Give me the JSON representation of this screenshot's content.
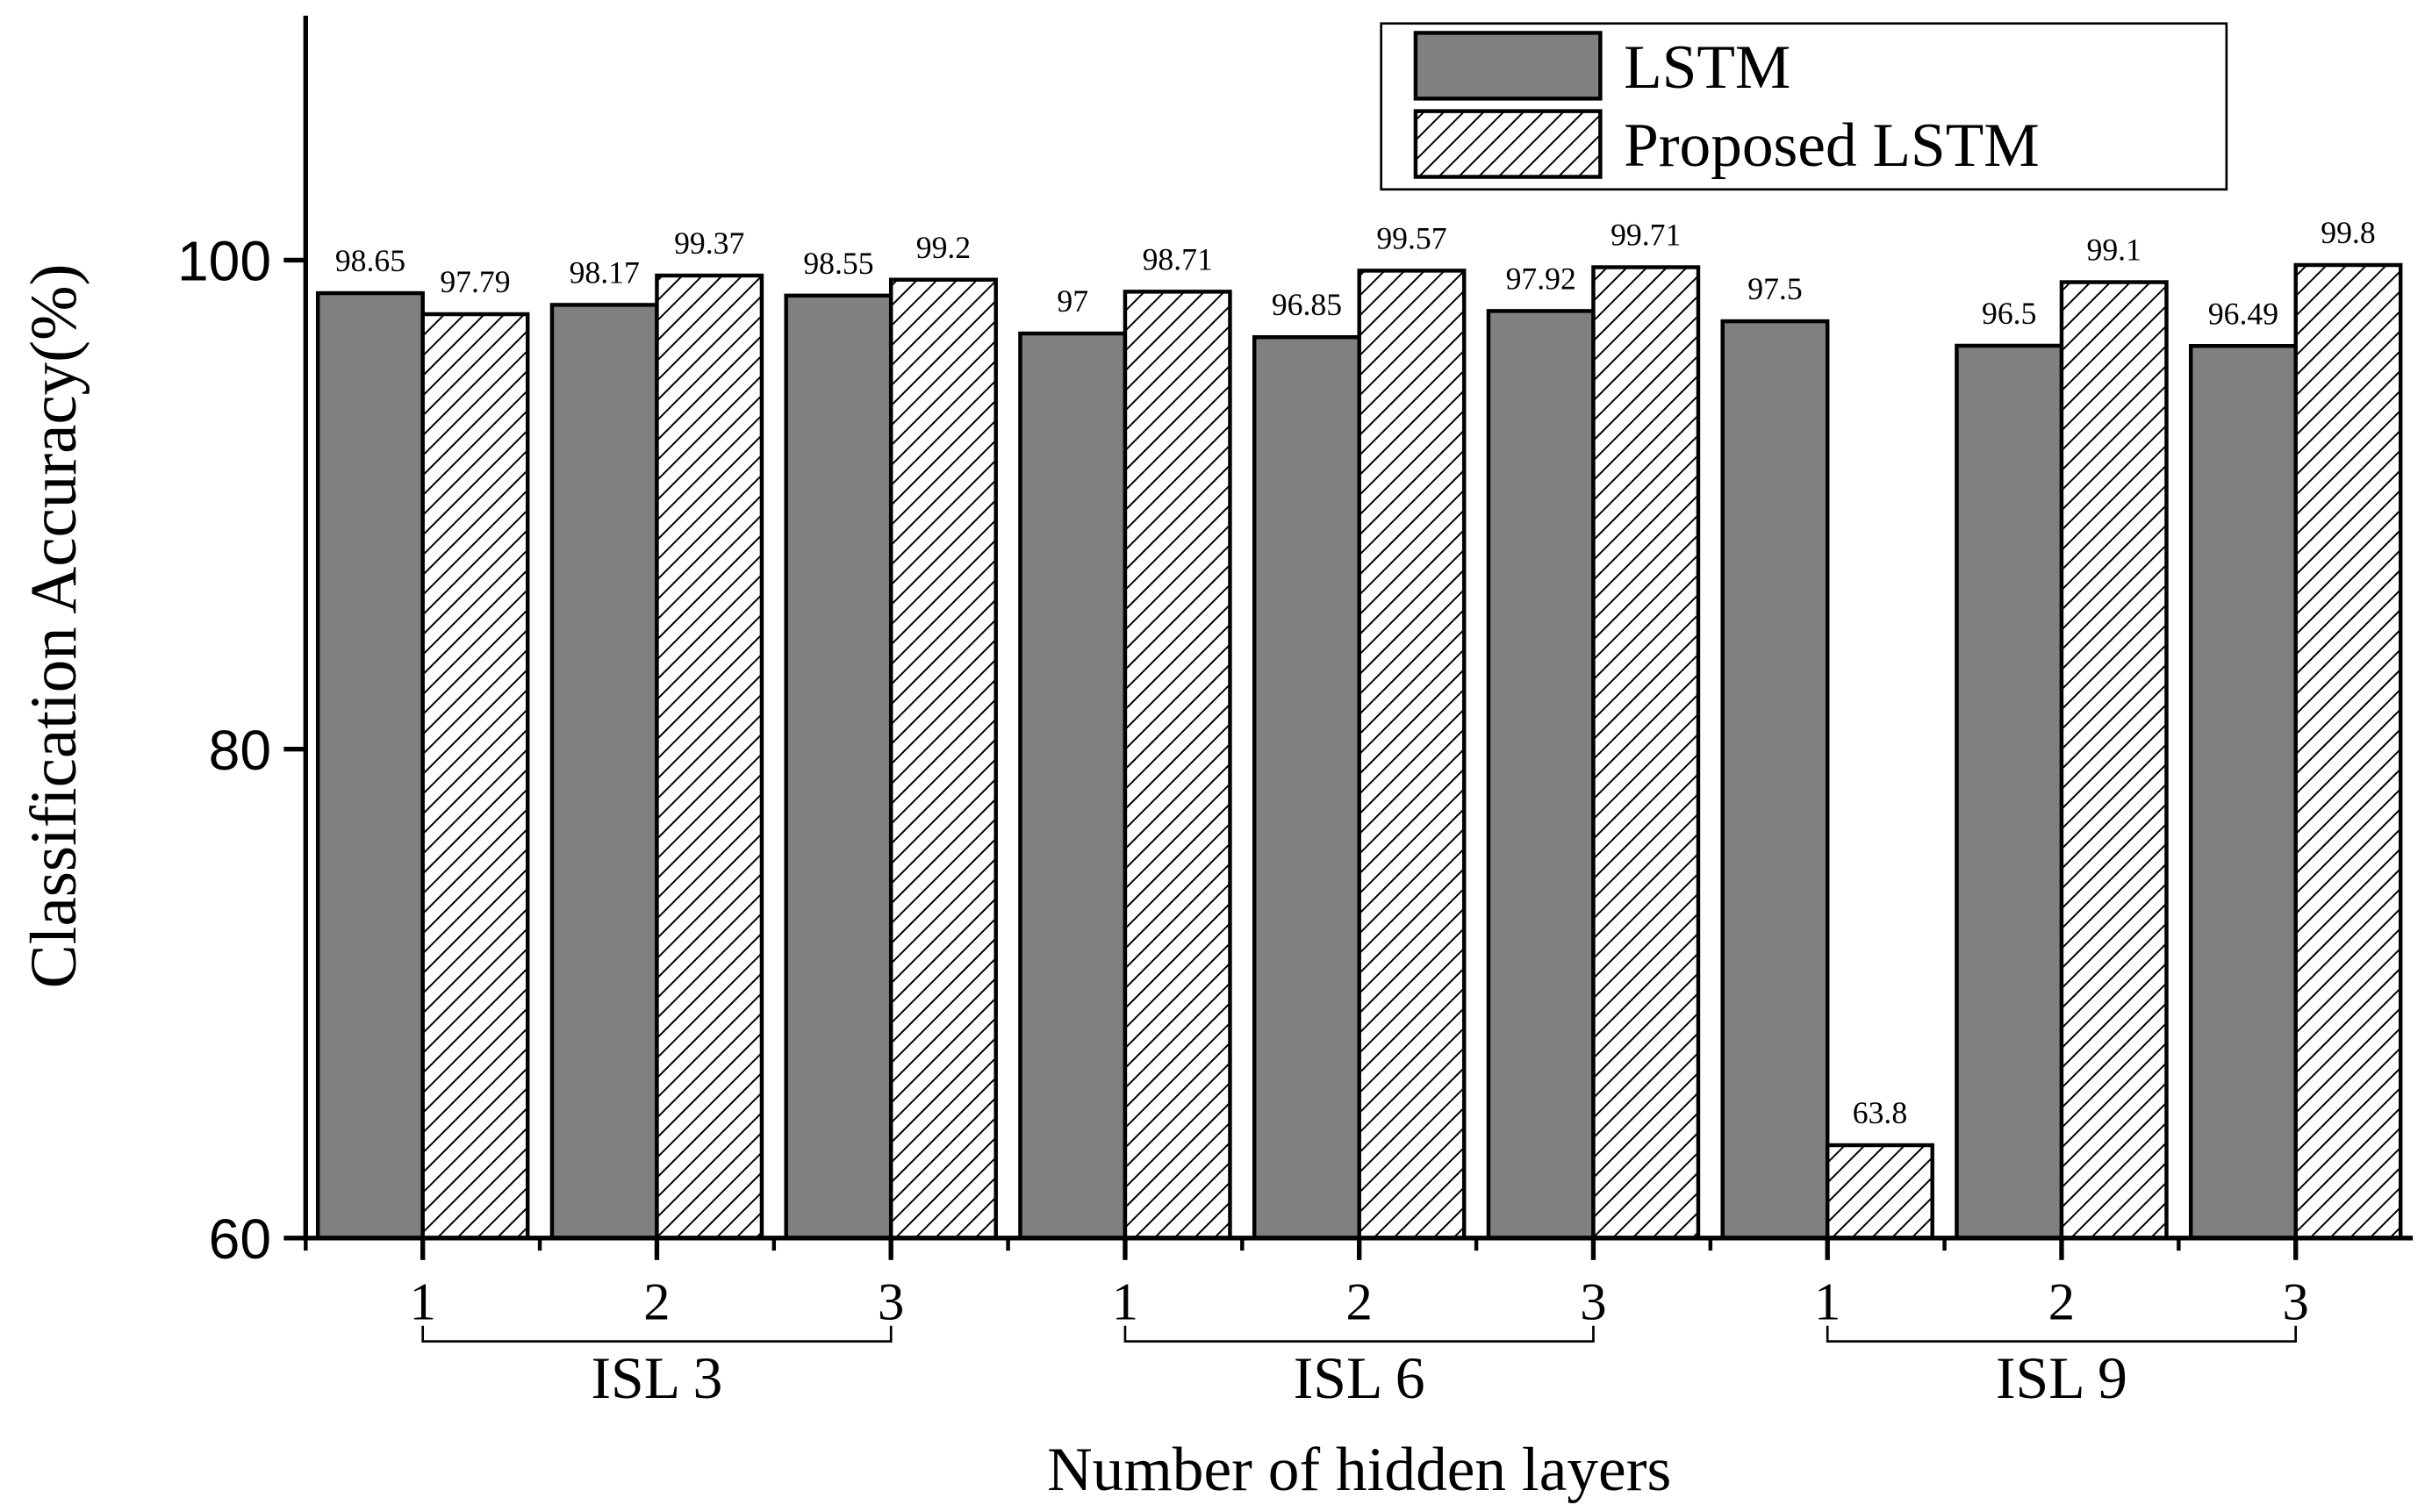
{
  "chart_data": {
    "type": "bar",
    "y_label": "Classification Accuracy(%)",
    "x_label": "Number of hidden layers",
    "categories": [
      "1",
      "2",
      "3",
      "1",
      "2",
      "3",
      "1",
      "2",
      "3"
    ],
    "groups": [
      "ISL 3",
      "ISL 6",
      "ISL 9"
    ],
    "series": [
      {
        "name": "LSTM",
        "color": "#808080",
        "values": [
          98.65,
          98.17,
          98.55,
          97,
          96.85,
          97.92,
          97.5,
          96.5,
          96.49
        ]
      },
      {
        "name": "Proposed LSTM",
        "color": "#ffffff",
        "values": [
          97.79,
          99.37,
          99.2,
          98.71,
          99.57,
          99.71,
          63.8,
          99.1,
          99.8
        ]
      }
    ],
    "ylim": [
      60,
      110
    ],
    "yticks": [
      60,
      80,
      100
    ],
    "legend": "top-right"
  }
}
